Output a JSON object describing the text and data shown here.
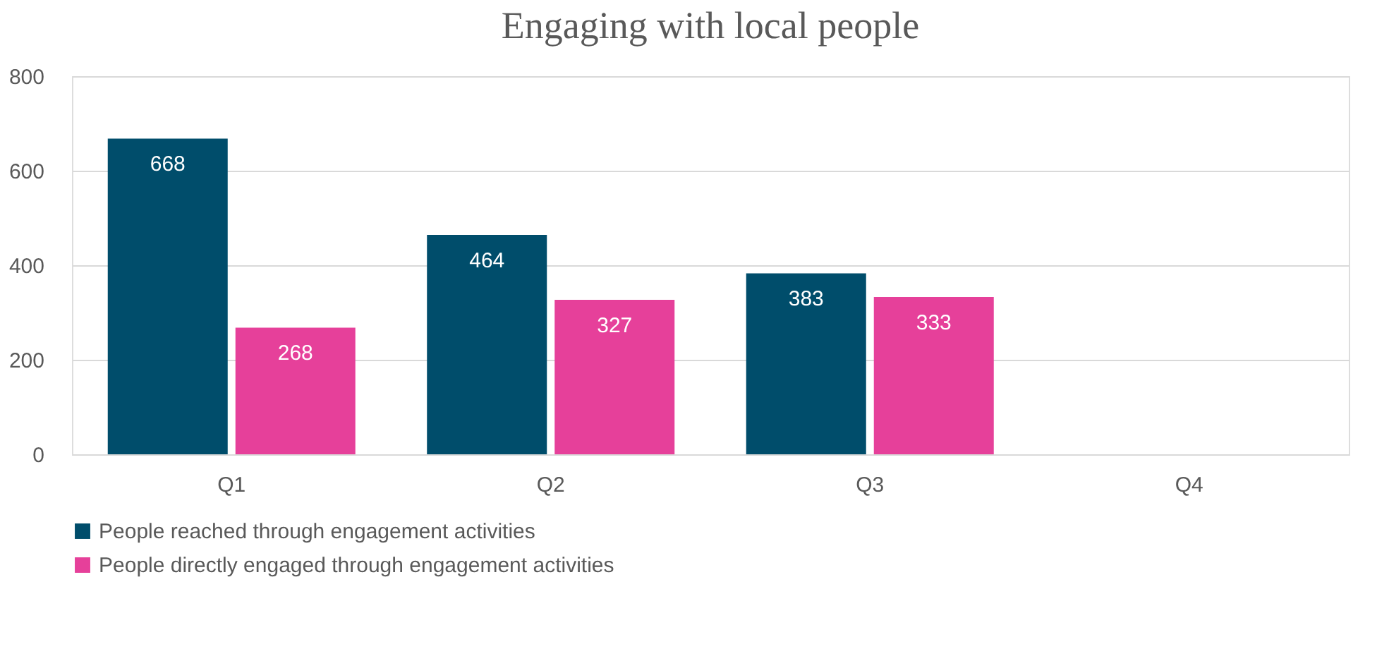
{
  "chart_data": {
    "type": "bar",
    "title": "Engaging with local people",
    "categories": [
      "Q1",
      "Q2",
      "Q3",
      "Q4"
    ],
    "series": [
      {
        "name": "People reached through engagement activities",
        "color": "#004d6b",
        "values": [
          668,
          464,
          383,
          null
        ]
      },
      {
        "name": "People directly engaged through engagement activities",
        "color": "#e6409a",
        "values": [
          268,
          327,
          333,
          null
        ]
      }
    ],
    "ylim": [
      0,
      800
    ],
    "yticks": [
      0,
      200,
      400,
      600,
      800
    ],
    "grid": "y",
    "legend": "bottom",
    "data_labels": true
  }
}
